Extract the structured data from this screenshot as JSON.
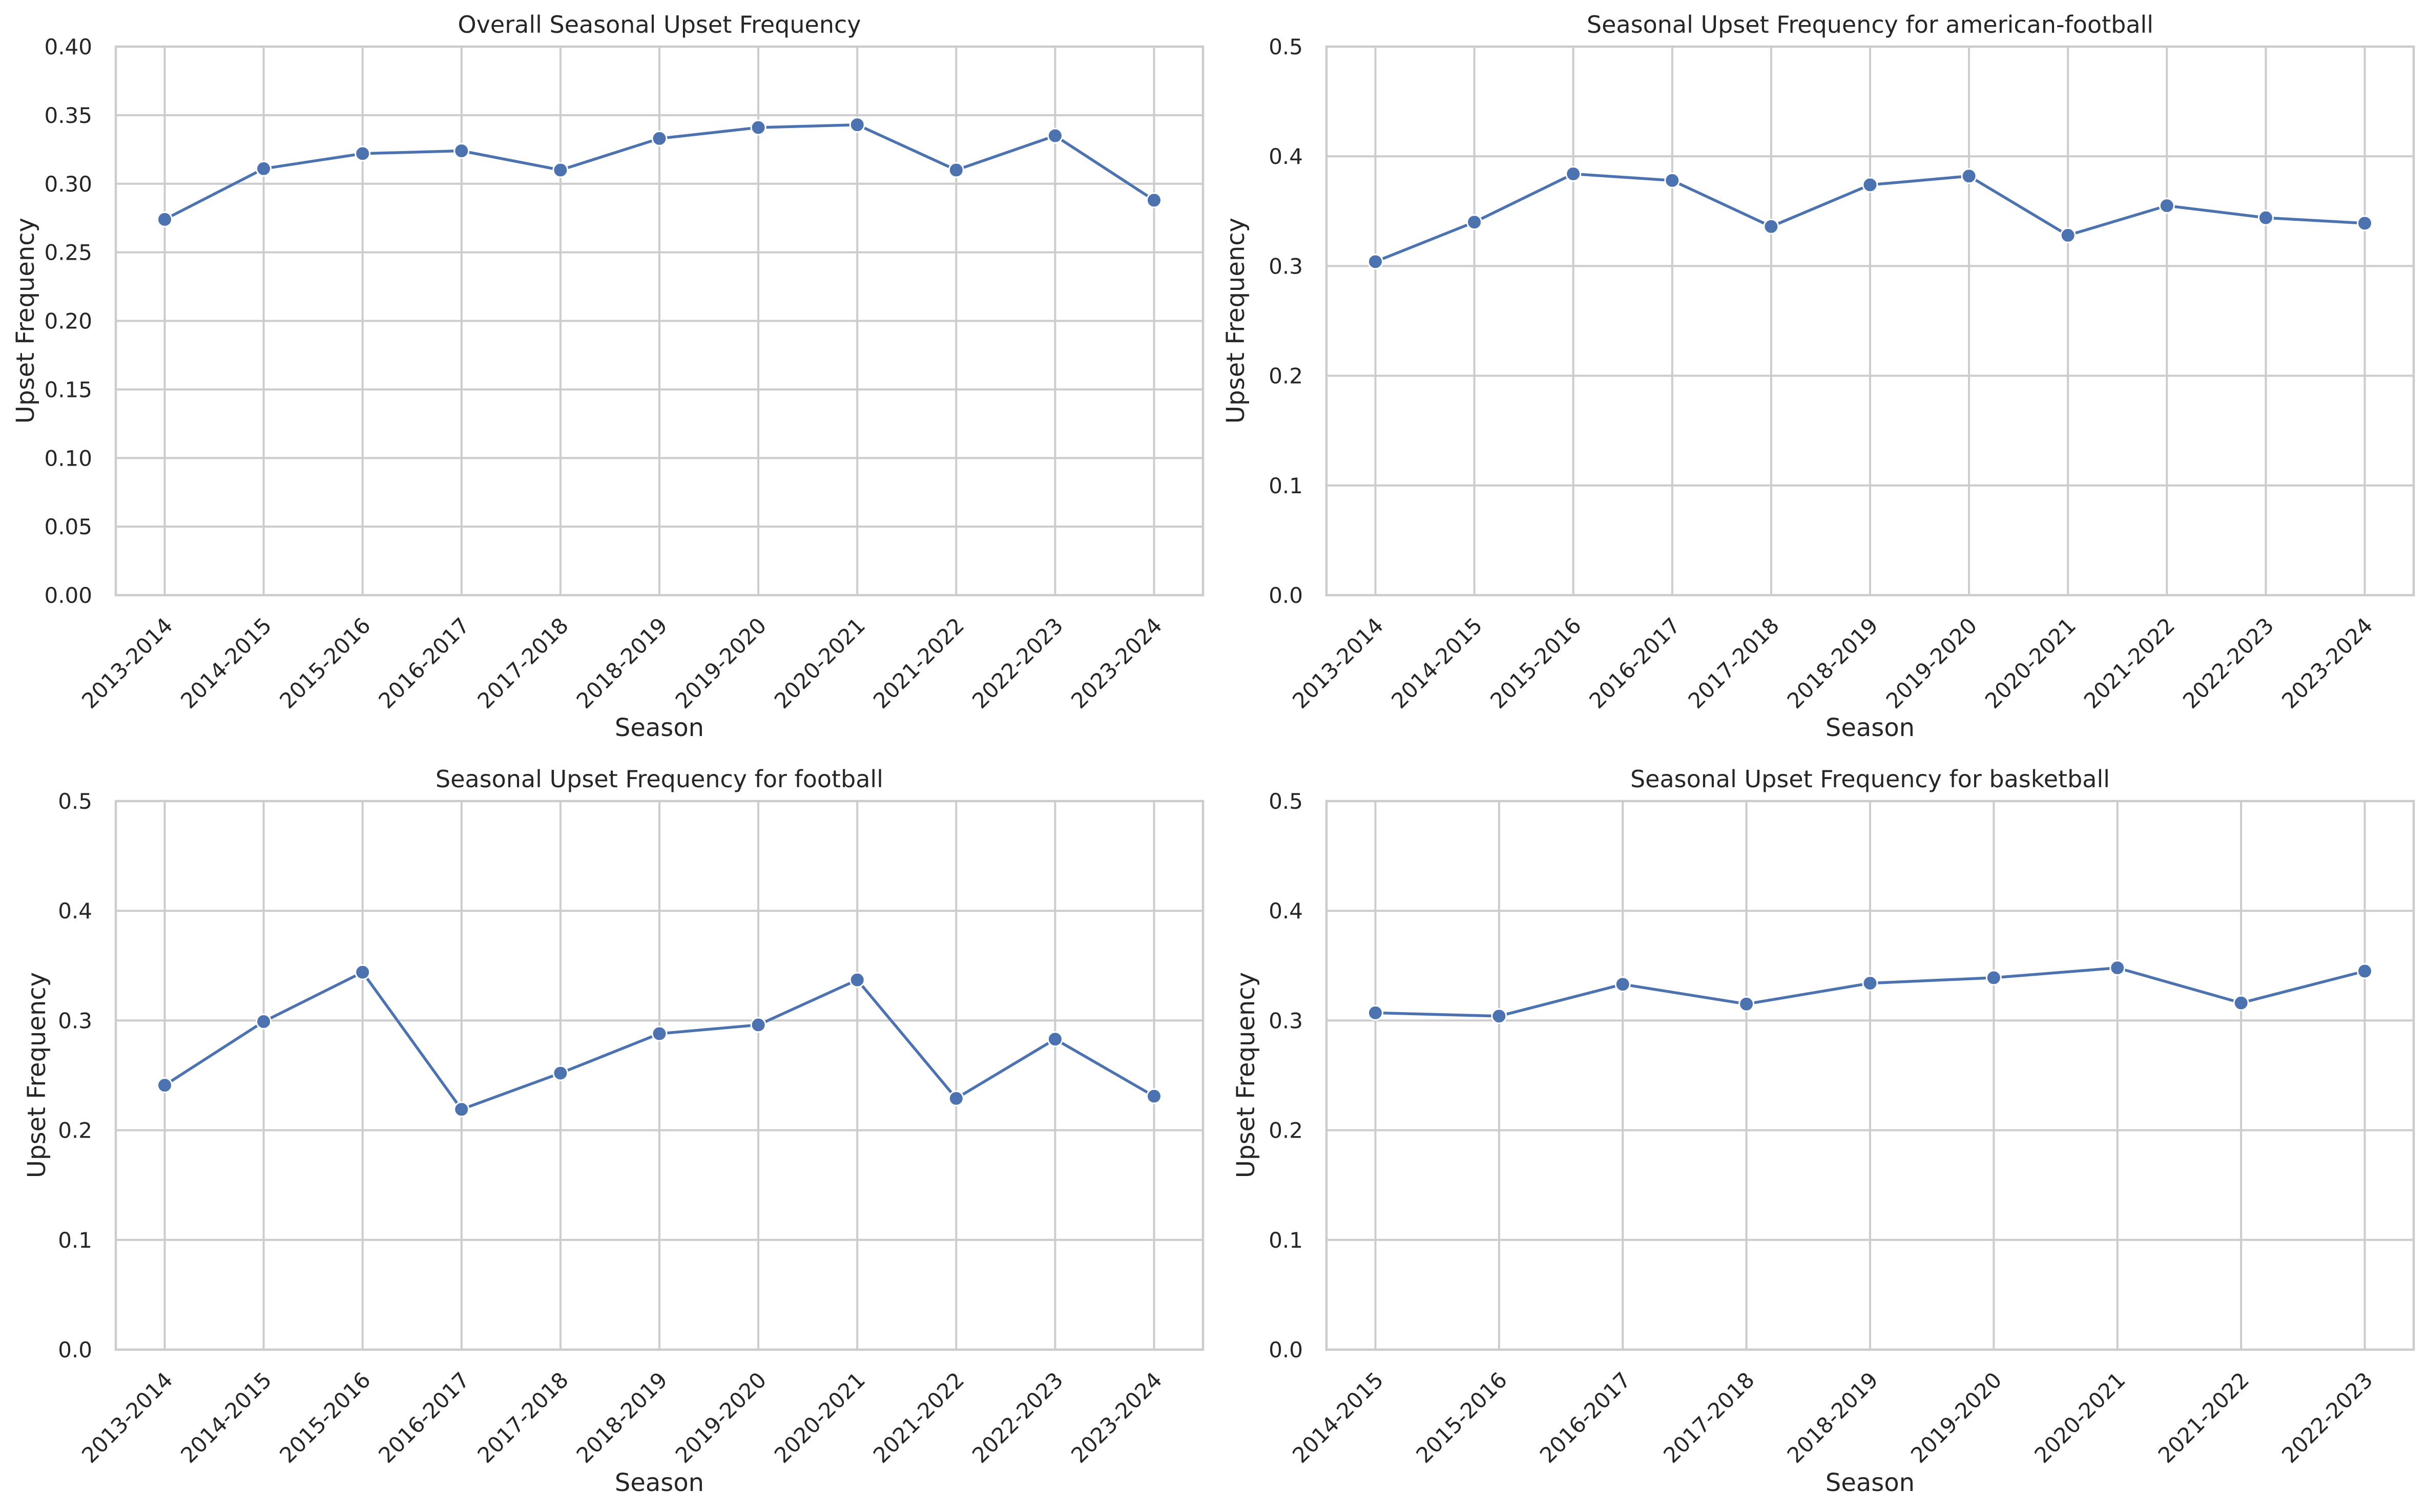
{
  "figure": {
    "background": "#ffffff",
    "series_color": "#4c72b0",
    "grid_color": "#cccccc"
  },
  "chart_data": [
    {
      "type": "line",
      "title": "Overall Seasonal Upset Frequency",
      "xlabel": "Season",
      "ylabel": "Upset Frequency",
      "categories": [
        "2013-2014",
        "2014-2015",
        "2015-2016",
        "2016-2017",
        "2017-2018",
        "2018-2019",
        "2019-2020",
        "2020-2021",
        "2021-2022",
        "2022-2023",
        "2023-2024"
      ],
      "values": [
        0.274,
        0.311,
        0.322,
        0.324,
        0.31,
        0.333,
        0.341,
        0.343,
        0.31,
        0.335,
        0.288
      ],
      "ylim": [
        0,
        0.4
      ],
      "yticks": [
        "0.00",
        "0.05",
        "0.10",
        "0.15",
        "0.20",
        "0.25",
        "0.30",
        "0.35",
        "0.40"
      ],
      "grid": true,
      "marker": "circle"
    },
    {
      "type": "line",
      "title": "Seasonal Upset Frequency for american-football",
      "xlabel": "Season",
      "ylabel": "Upset Frequency",
      "categories": [
        "2013-2014",
        "2014-2015",
        "2015-2016",
        "2016-2017",
        "2017-2018",
        "2018-2019",
        "2019-2020",
        "2020-2021",
        "2021-2022",
        "2022-2023",
        "2023-2024"
      ],
      "values": [
        0.304,
        0.34,
        0.384,
        0.378,
        0.336,
        0.374,
        0.382,
        0.328,
        0.355,
        0.344,
        0.339
      ],
      "ylim": [
        0,
        0.5
      ],
      "yticks": [
        "0.0",
        "0.1",
        "0.2",
        "0.3",
        "0.4",
        "0.5"
      ],
      "grid": true,
      "marker": "circle"
    },
    {
      "type": "line",
      "title": "Seasonal Upset Frequency for football",
      "xlabel": "Season",
      "ylabel": "Upset Frequency",
      "categories": [
        "2013-2014",
        "2014-2015",
        "2015-2016",
        "2016-2017",
        "2017-2018",
        "2018-2019",
        "2019-2020",
        "2020-2021",
        "2021-2022",
        "2022-2023",
        "2023-2024"
      ],
      "values": [
        0.241,
        0.299,
        0.344,
        0.219,
        0.252,
        0.288,
        0.296,
        0.337,
        0.229,
        0.283,
        0.231
      ],
      "ylim": [
        0,
        0.5
      ],
      "yticks": [
        "0.0",
        "0.1",
        "0.2",
        "0.3",
        "0.4",
        "0.5"
      ],
      "grid": true,
      "marker": "circle"
    },
    {
      "type": "line",
      "title": "Seasonal Upset Frequency for basketball",
      "xlabel": "Season",
      "ylabel": "Upset Frequency",
      "categories": [
        "2014-2015",
        "2015-2016",
        "2016-2017",
        "2017-2018",
        "2018-2019",
        "2019-2020",
        "2020-2021",
        "2021-2022",
        "2022-2023"
      ],
      "values": [
        0.307,
        0.304,
        0.333,
        0.315,
        0.334,
        0.339,
        0.348,
        0.316,
        0.345
      ],
      "ylim": [
        0,
        0.5
      ],
      "yticks": [
        "0.0",
        "0.1",
        "0.2",
        "0.3",
        "0.4",
        "0.5"
      ],
      "grid": true,
      "marker": "circle"
    }
  ]
}
